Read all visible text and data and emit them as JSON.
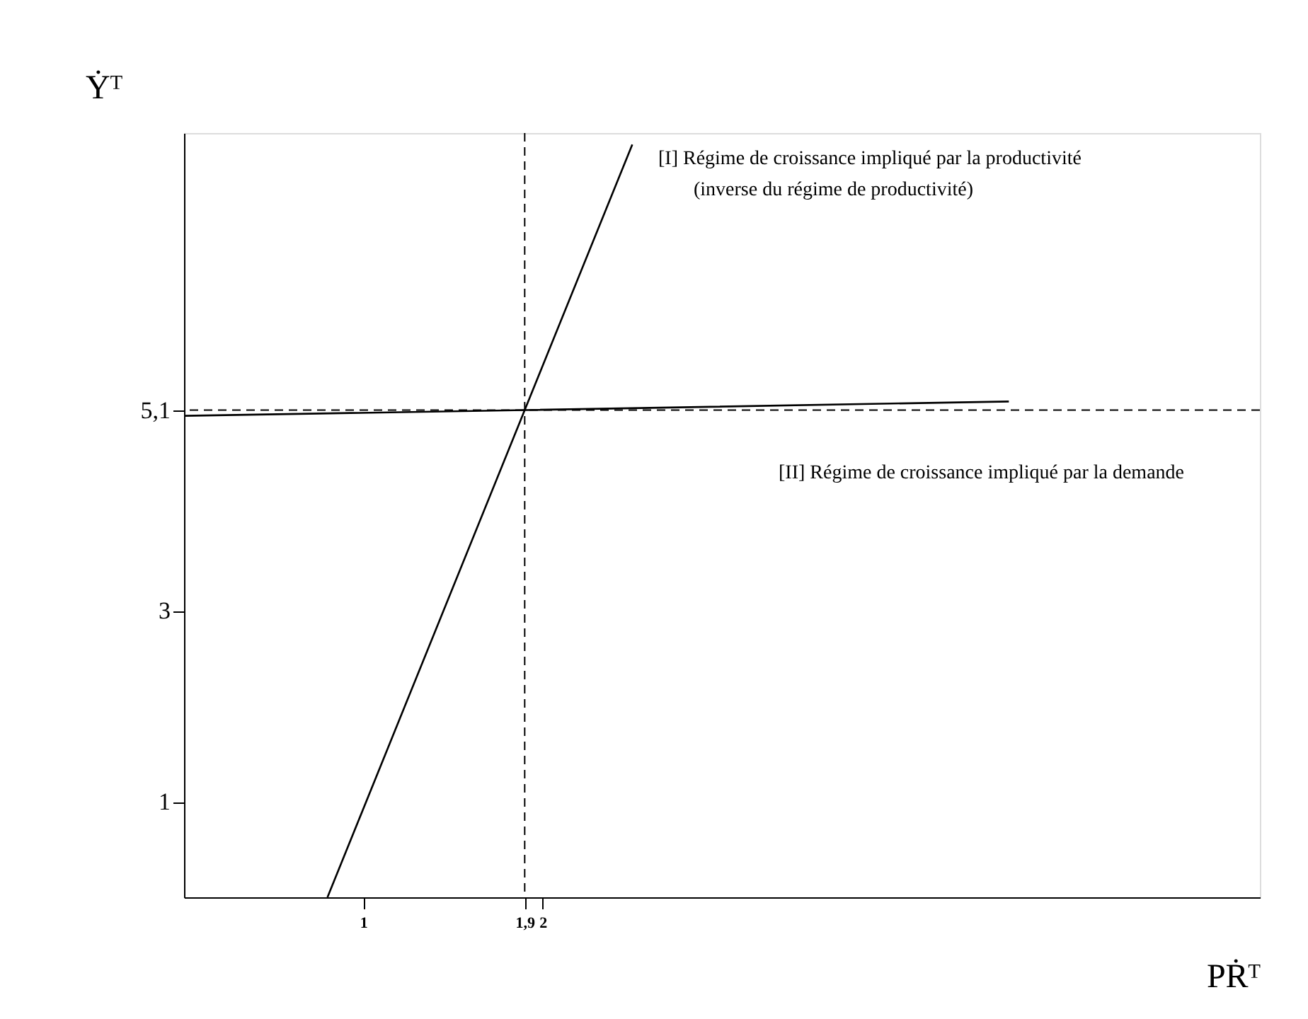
{
  "chart_data": {
    "type": "line",
    "xlabel": "PṘᵀ",
    "ylabel": "Ẏᵀ",
    "xlim": [
      0,
      6
    ],
    "ylim": [
      0,
      8
    ],
    "xticks": [
      1,
      {
        "value": 1.9,
        "label": "1,9"
      },
      2
    ],
    "yticks": [
      1,
      3,
      {
        "value": 5.1,
        "label": "5,1"
      }
    ],
    "series": [
      {
        "color": "#000000",
        "x": [
          0.8,
          1.9,
          2.5
        ],
        "values": [
          0,
          5.1,
          7.88
        ]
      },
      {
        "color": "#000000",
        "x": [
          0,
          1.9,
          4.6
        ],
        "values": [
          5.04,
          5.1,
          5.19
        ]
      }
    ],
    "ref_lines": [
      {
        "axis": "y",
        "value": 5.1,
        "color": "#000000",
        "line_style": "dashed"
      },
      {
        "axis": "x",
        "value": 1.9,
        "color": "#000000",
        "line_style": "dashed"
      }
    ],
    "annotations": [
      "[I] Régime de croissance impliqué  par la productivité",
      "(inverse du régime de productivité)",
      "[II] Régime de croissance impliqué  par la demande"
    ],
    "grid": false,
    "marker": "none",
    "line_style": "solid"
  }
}
